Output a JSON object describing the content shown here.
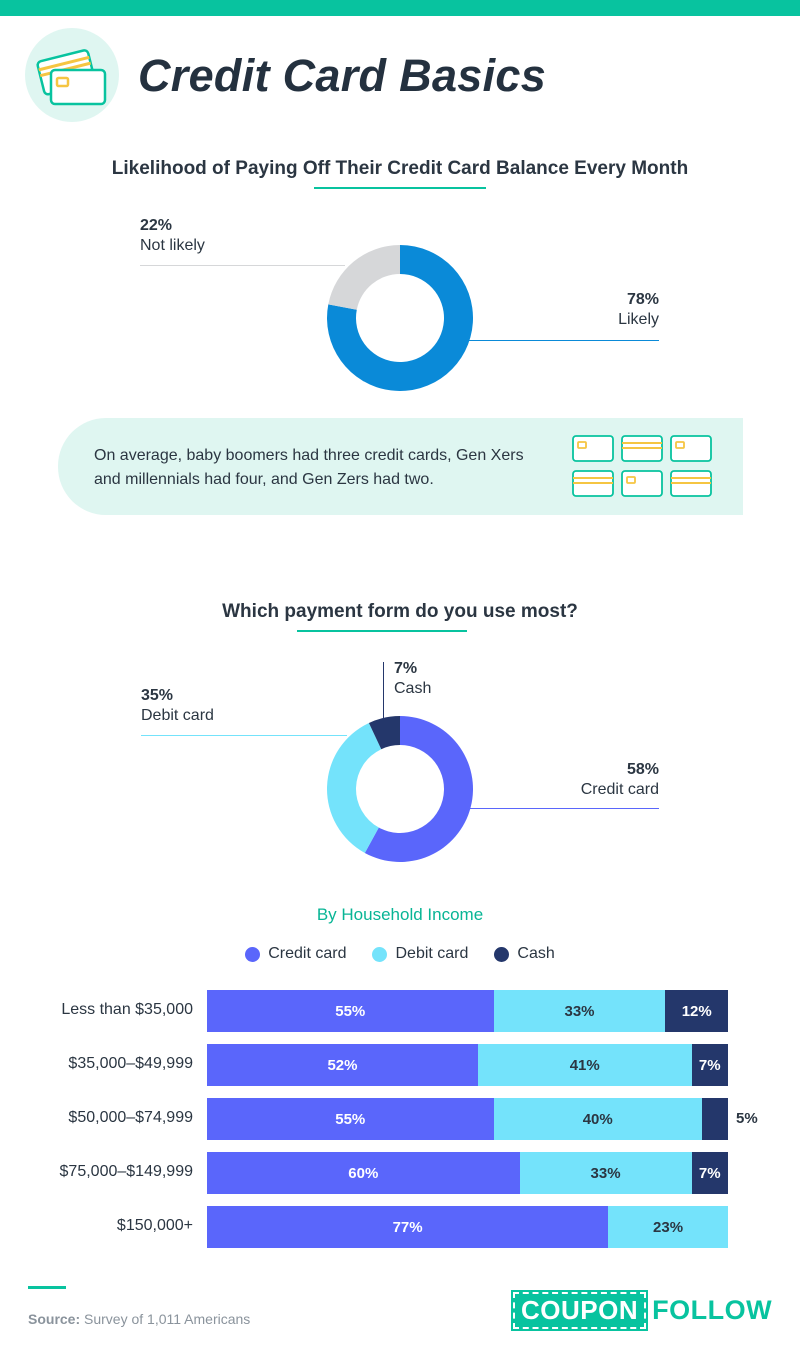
{
  "header": {
    "title": "Credit Card Basics",
    "icon": "credit-cards-icon",
    "accent_color": "#08c39f"
  },
  "section1": {
    "title": "Likelihood of Paying Off Their Credit Card Balance Every Month"
  },
  "section2": {
    "title": "Which payment form do you use most?",
    "subtitle": "By Household Income"
  },
  "fact": {
    "line1": "On average, baby boomers had three credit cards, Gen Xers",
    "line2": "and millennials had four, and Gen Zers had two.",
    "icon": "credit-cards-grid-icon"
  },
  "footer": {
    "source_label": "Source:",
    "source_text": "Survey of 1,011 Americans",
    "brand_part1": "COUPON",
    "brand_part2": "FOLLOW"
  },
  "chart_data": [
    {
      "type": "pie",
      "title": "Likelihood of Paying Off Their Credit Card Balance Every Month",
      "categories": [
        "Not likely",
        "Likely"
      ],
      "values": [
        22,
        78
      ],
      "value_labels": [
        "22%",
        "78%"
      ],
      "colors": [
        "#d6d7d9",
        "#0a8ad8"
      ]
    },
    {
      "type": "pie",
      "title": "Which payment form do you use most?",
      "categories": [
        "Credit card",
        "Debit card",
        "Cash"
      ],
      "values": [
        58,
        35,
        7
      ],
      "value_labels": [
        "58%",
        "35%",
        "7%"
      ],
      "colors": [
        "#5a66fb",
        "#74e3fb",
        "#24376b"
      ]
    },
    {
      "type": "bar",
      "orientation": "horizontal",
      "stacked": true,
      "title": "By Household Income",
      "legend_placement": "top",
      "categories": [
        "Less than $35,000",
        "$35,000–$49,999",
        "$50,000–$74,999",
        "$75,000–$149,999",
        "$150,000+"
      ],
      "series": [
        {
          "name": "Credit card",
          "color": "#5a66fb",
          "text_color": "#ffffff",
          "values": [
            55,
            52,
            55,
            60,
            77
          ],
          "labels": [
            "55%",
            "52%",
            "55%",
            "60%",
            "77%"
          ]
        },
        {
          "name": "Debit card",
          "color": "#74e3fb",
          "text_color": "#2b3642",
          "values": [
            33,
            41,
            40,
            33,
            23
          ],
          "labels": [
            "33%",
            "41%",
            "40%",
            "33%",
            "23%"
          ]
        },
        {
          "name": "Cash",
          "color": "#24376b",
          "text_color": "#ffffff",
          "values": [
            12,
            7,
            5,
            7,
            0
          ],
          "labels": [
            "12%",
            "7%",
            "5%",
            "7%",
            ""
          ]
        }
      ],
      "xlim": [
        0,
        100
      ]
    }
  ]
}
